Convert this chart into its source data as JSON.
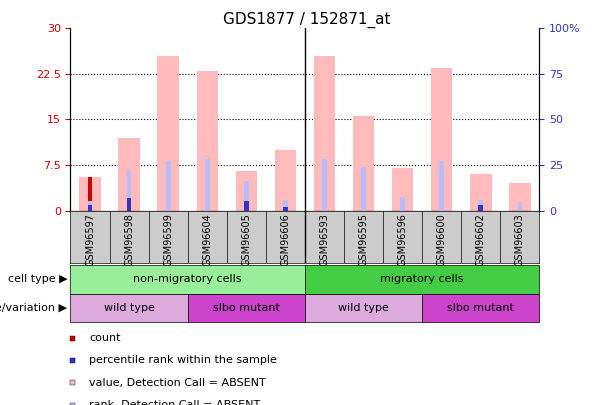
{
  "title": "GDS1877 / 152871_at",
  "samples": [
    "GSM96597",
    "GSM96598",
    "GSM96599",
    "GSM96604",
    "GSM96605",
    "GSM96606",
    "GSM96593",
    "GSM96595",
    "GSM96596",
    "GSM96600",
    "GSM96602",
    "GSM96603"
  ],
  "absent_value_bars": [
    5.5,
    12.0,
    25.5,
    23.0,
    6.5,
    10.0,
    25.5,
    15.5,
    7.0,
    23.5,
    6.0,
    4.5
  ],
  "absent_rank_bars": [
    5.0,
    22.5,
    27.0,
    28.5,
    16.5,
    6.0,
    28.5,
    24.0,
    7.5,
    27.0,
    6.0,
    4.5
  ],
  "count_values": [
    5.5,
    0,
    0,
    0,
    0,
    0,
    0,
    0,
    0,
    0,
    0,
    0
  ],
  "percentile_values": [
    3.0,
    7.0,
    0,
    0,
    5.5,
    2.0,
    0,
    0,
    0,
    0,
    3.0,
    0
  ],
  "ylim_left": [
    0,
    30
  ],
  "ylim_right": [
    0,
    100
  ],
  "yticks_left": [
    0,
    7.5,
    15,
    22.5,
    30
  ],
  "yticks_right": [
    0,
    25,
    50,
    75,
    100
  ],
  "ytick_labels_left": [
    "0",
    "7.5",
    "15",
    "22.5",
    "30"
  ],
  "ytick_labels_right": [
    "0",
    "25",
    "50",
    "75",
    "100%"
  ],
  "color_count": "#cc0000",
  "color_percentile": "#3333cc",
  "color_absent_value": "#ffbbbb",
  "color_absent_rank": "#bbbbff",
  "cell_type_groups": [
    {
      "label": "non-migratory cells",
      "start": 0,
      "end": 6,
      "color": "#99ee99"
    },
    {
      "label": "migratory cells",
      "start": 6,
      "end": 12,
      "color": "#44cc44"
    }
  ],
  "genotype_groups": [
    {
      "label": "wild type",
      "start": 0,
      "end": 3,
      "color": "#ddaadd"
    },
    {
      "label": "slbo mutant",
      "start": 3,
      "end": 6,
      "color": "#cc44cc"
    },
    {
      "label": "wild type",
      "start": 6,
      "end": 9,
      "color": "#ddaadd"
    },
    {
      "label": "slbo mutant",
      "start": 9,
      "end": 12,
      "color": "#cc44cc"
    }
  ],
  "legend_items": [
    {
      "label": "count",
      "color": "#cc0000"
    },
    {
      "label": "percentile rank within the sample",
      "color": "#3333cc"
    },
    {
      "label": "value, Detection Call = ABSENT",
      "color": "#ffbbbb"
    },
    {
      "label": "rank, Detection Call = ABSENT",
      "color": "#bbbbff"
    }
  ],
  "tick_area_color": "#cccccc",
  "separator_col": 5.5,
  "fig_width": 6.13,
  "fig_height": 4.05,
  "dpi": 100
}
